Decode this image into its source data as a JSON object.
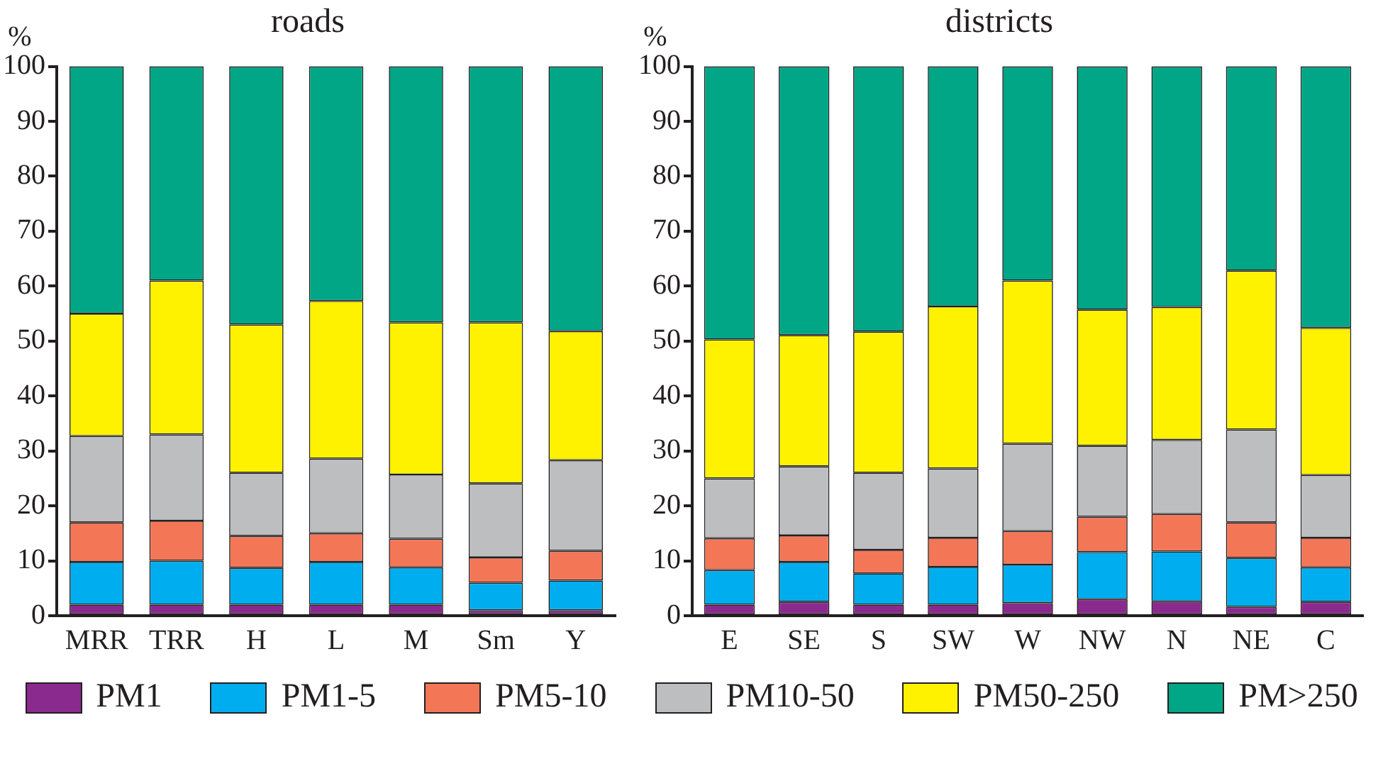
{
  "chart_data": [
    {
      "type": "bar",
      "title": "roads",
      "ylabel": "%",
      "stacked": true,
      "legend": "bottom",
      "grid": false,
      "categories": [
        "MRR",
        "TRR",
        "H",
        "L",
        "M",
        "Sm",
        "Y"
      ],
      "ylim": [
        0,
        100
      ],
      "yticks": [
        0,
        10,
        20,
        30,
        40,
        50,
        60,
        70,
        80,
        90,
        100
      ],
      "series": [
        {
          "name": "PM1",
          "color": "#8b2a8e",
          "values": [
            2,
            2,
            2,
            2,
            2,
            1,
            1
          ]
        },
        {
          "name": "PM1-5",
          "color": "#00aeef",
          "values": [
            7.8,
            8,
            6.7,
            7.8,
            6.8,
            5,
            5.4
          ]
        },
        {
          "name": "PM5-10",
          "color": "#f37757",
          "values": [
            7.2,
            7.3,
            5.8,
            5.2,
            5.2,
            4.6,
            5.4
          ]
        },
        {
          "name": "PM10-50",
          "color": "#bcbec0",
          "values": [
            15.7,
            15.7,
            11.5,
            13.6,
            11.7,
            13.5,
            16.5
          ]
        },
        {
          "name": "PM50-250",
          "color": "#fff200",
          "values": [
            22.3,
            28,
            27,
            28.7,
            27.7,
            29.3,
            23.5
          ]
        },
        {
          "name": "PM>250",
          "color": "#00a685",
          "values": [
            45,
            39,
            47,
            42.7,
            46.6,
            46.6,
            48.2
          ]
        }
      ]
    },
    {
      "type": "bar",
      "title": "districts",
      "ylabel": "%",
      "stacked": true,
      "legend": "bottom",
      "grid": false,
      "categories": [
        "E",
        "SE",
        "S",
        "SW",
        "W",
        "NW",
        "N",
        "NE",
        "C"
      ],
      "ylim": [
        0,
        100
      ],
      "yticks": [
        0,
        10,
        20,
        30,
        40,
        50,
        60,
        70,
        80,
        90,
        100
      ],
      "series": [
        {
          "name": "PM1",
          "color": "#8b2a8e",
          "values": [
            2,
            2.5,
            2,
            2,
            2.3,
            3,
            2.6,
            1.6,
            2.5
          ]
        },
        {
          "name": "PM1-5",
          "color": "#00aeef",
          "values": [
            6.3,
            7.3,
            5.7,
            6.9,
            7,
            8.6,
            9.1,
            8.9,
            6.3
          ]
        },
        {
          "name": "PM5-10",
          "color": "#f37757",
          "values": [
            5.8,
            4.8,
            4.3,
            5.3,
            6.1,
            6.4,
            6.8,
            6.5,
            5.4
          ]
        },
        {
          "name": "PM10-50",
          "color": "#bcbec0",
          "values": [
            10.9,
            12.6,
            14,
            12.6,
            15.9,
            12.9,
            13.5,
            16.9,
            11.4
          ]
        },
        {
          "name": "PM50-250",
          "color": "#fff200",
          "values": [
            25.3,
            23.9,
            25.7,
            29.5,
            29.7,
            24.8,
            24.2,
            28.9,
            26.8
          ]
        },
        {
          "name": "PM>250",
          "color": "#00a685",
          "values": [
            49.7,
            48.9,
            48.3,
            43.7,
            39,
            44.3,
            43.8,
            37.2,
            47.6
          ]
        }
      ]
    }
  ]
}
